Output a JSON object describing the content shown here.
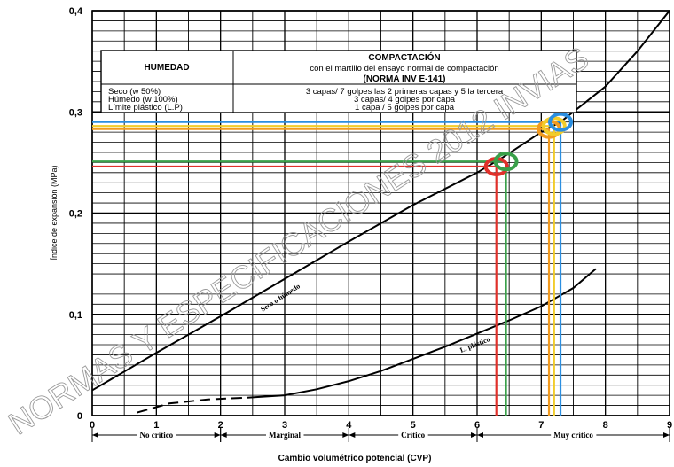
{
  "chart_data": {
    "type": "line",
    "ylabel": "Índice de expansión (MPa)",
    "xlabel": "Cambio volumétrico potencial (CVP)",
    "xlim": [
      0,
      9
    ],
    "ylim": [
      0,
      0.4
    ],
    "x_ticks": [
      "0",
      "1",
      "2",
      "3",
      "4",
      "5",
      "6",
      "7",
      "8",
      "9"
    ],
    "y_ticks": [
      "0",
      "0,1",
      "0,2",
      "0,3",
      "0,4"
    ],
    "grid": true,
    "series": [
      {
        "name": "Seco o húmedo",
        "style": "solid",
        "color": "#000000",
        "points": [
          [
            0,
            0.025
          ],
          [
            1,
            0.062
          ],
          [
            2,
            0.098
          ],
          [
            3,
            0.135
          ],
          [
            4,
            0.172
          ],
          [
            5,
            0.208
          ],
          [
            6,
            0.24
          ],
          [
            6.4,
            0.255
          ],
          [
            7,
            0.28
          ],
          [
            7.3,
            0.29
          ],
          [
            7.6,
            0.305
          ],
          [
            8,
            0.325
          ],
          [
            8.5,
            0.36
          ],
          [
            9,
            0.4
          ]
        ]
      },
      {
        "name": "L. plástico",
        "style": "dashed-then-solid",
        "color": "#000000",
        "points": [
          [
            0.7,
            0.003
          ],
          [
            1.2,
            0.012
          ],
          [
            1.8,
            0.016
          ],
          [
            2.5,
            0.018
          ],
          [
            3,
            0.02
          ],
          [
            3.5,
            0.026
          ],
          [
            4,
            0.034
          ],
          [
            4.5,
            0.044
          ],
          [
            5,
            0.056
          ],
          [
            5.5,
            0.068
          ],
          [
            6,
            0.081
          ],
          [
            6.5,
            0.094
          ],
          [
            7,
            0.108
          ],
          [
            7.5,
            0.126
          ],
          [
            7.85,
            0.145
          ]
        ]
      }
    ],
    "zones": [
      {
        "label": "No crítico",
        "from": 0,
        "to": 2
      },
      {
        "label": "Marginal",
        "from": 2,
        "to": 4
      },
      {
        "label": "Crítico",
        "from": 4,
        "to": 6
      },
      {
        "label": "Muy crítico",
        "from": 6,
        "to": 9
      }
    ],
    "highlights": [
      {
        "color": "#e0302a",
        "x": 6.3,
        "y": 0.246
      },
      {
        "color": "#3aa04a",
        "x": 6.45,
        "y": 0.251
      },
      {
        "color": "#f29a1e",
        "x": 7.12,
        "y": 0.283
      },
      {
        "color": "#f2cc2a",
        "x": 7.2,
        "y": 0.286
      },
      {
        "color": "#2a8ee0",
        "x": 7.3,
        "y": 0.29
      }
    ]
  },
  "table": {
    "header_left": "HUMEDAD",
    "header_right_1": "COMPACTACIÓN",
    "header_right_2": "con el martillo del ensayo normal de compactación",
    "header_right_3": "(NORMA INV  E-141)",
    "rows": [
      {
        "humedad": "Seco (w 50%)",
        "compactacion": "3 capas/ 7 golpes las 2 primeras capas y 5 la tercera"
      },
      {
        "humedad": "Húmedo (w 100%)",
        "compactacion": "3 capas/ 4 golpes por capa"
      },
      {
        "humedad": "Límite plástico (L.P)",
        "compactacion": "1 capa / 5 golpes por capa"
      }
    ]
  },
  "watermark": "NORMAS Y ESPECIFICACIONES 2012 INVIAS"
}
